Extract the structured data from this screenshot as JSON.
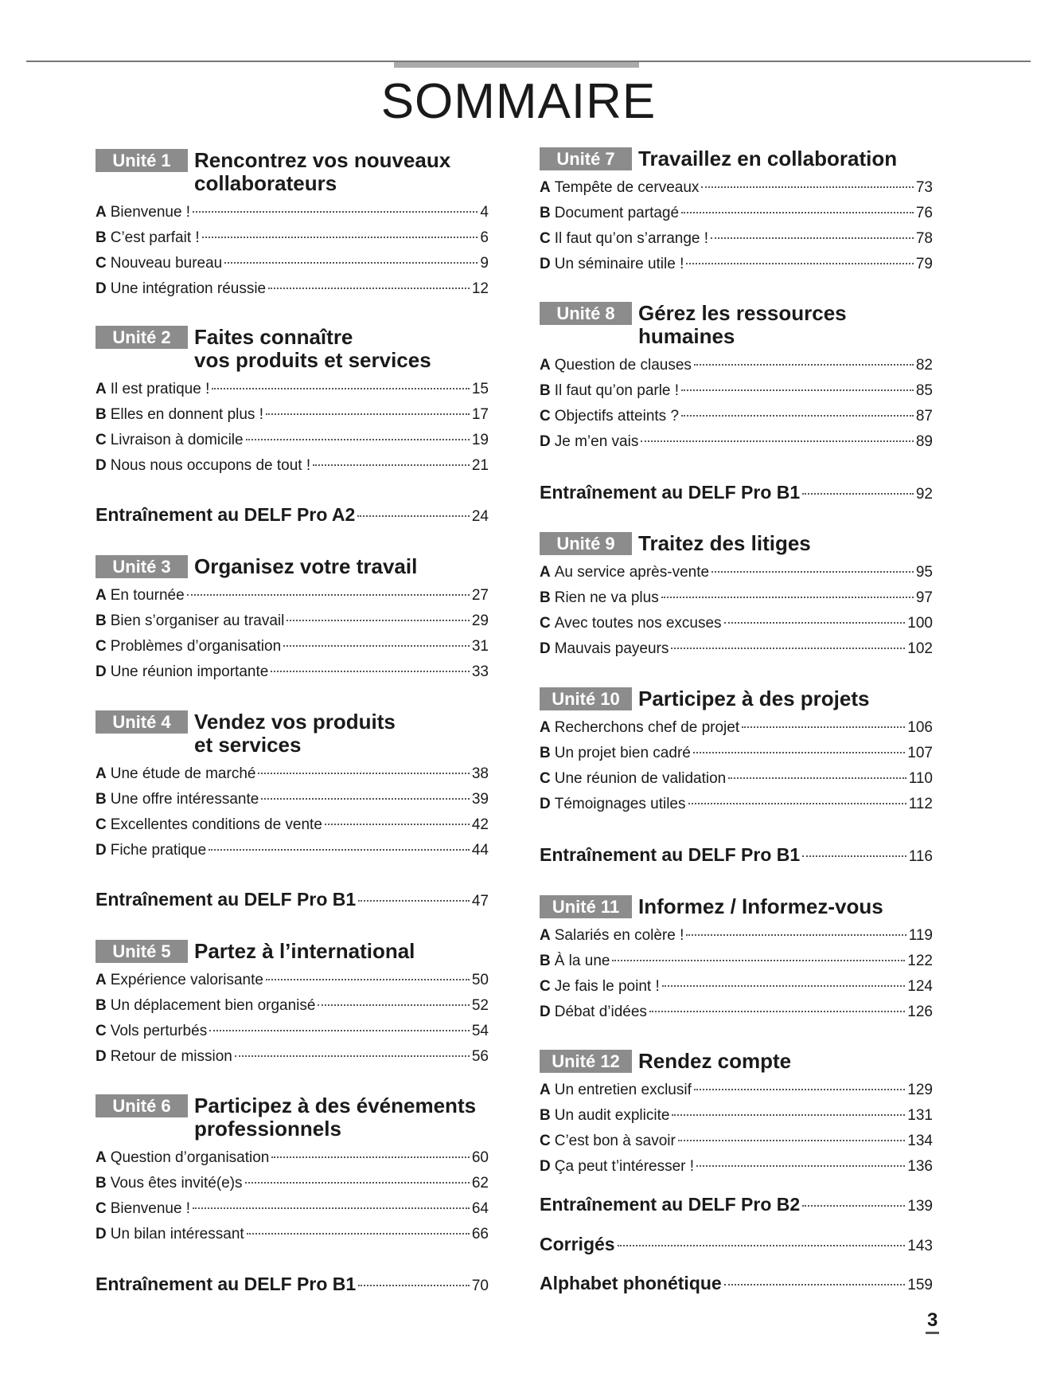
{
  "header": {
    "title": "SOMMAIRE"
  },
  "columns": [
    [
      {
        "badge": "Unité 1",
        "title_lines": [
          "Rencontrez vos nouveaux",
          "collaborateurs"
        ],
        "entries": [
          {
            "letter": "A",
            "text": "Bienvenue !",
            "page": 4
          },
          {
            "letter": "B",
            "text": "C’est parfait !",
            "page": 6
          },
          {
            "letter": "C",
            "text": "Nouveau bureau",
            "page": 9
          },
          {
            "letter": "D",
            "text": "Une intégration réussie",
            "page": 12
          }
        ]
      },
      {
        "badge": "Unité 2",
        "title_lines": [
          "Faites connaître",
          "vos produits et services"
        ],
        "entries": [
          {
            "letter": "A",
            "text": "Il est pratique !",
            "page": 15
          },
          {
            "letter": "B",
            "text": "Elles en donnent plus !",
            "page": 17
          },
          {
            "letter": "C",
            "text": "Livraison à domicile",
            "page": 19
          },
          {
            "letter": "D",
            "text": "Nous nous occupons de tout !",
            "page": 21
          }
        ]
      },
      {
        "title": "Entraînement au DELF Pro A2",
        "page": 24
      },
      {
        "badge": "Unité 3",
        "title_lines": [
          "Organisez votre travail"
        ],
        "entries": [
          {
            "letter": "A",
            "text": "En tournée",
            "page": 27
          },
          {
            "letter": "B",
            "text": "Bien s’organiser au travail",
            "page": 29
          },
          {
            "letter": "C",
            "text": "Problèmes d’organisation",
            "page": 31
          },
          {
            "letter": "D",
            "text": "Une réunion importante",
            "page": 33
          }
        ]
      },
      {
        "badge": "Unité 4",
        "title_lines": [
          "Vendez vos produits",
          "et services"
        ],
        "entries": [
          {
            "letter": "A",
            "text": "Une étude de marché",
            "page": 38
          },
          {
            "letter": "B",
            "text": "Une offre intéressante",
            "page": 39
          },
          {
            "letter": "C",
            "text": "Excellentes conditions de vente",
            "page": 42
          },
          {
            "letter": "D",
            "text": "Fiche pratique",
            "page": 44
          }
        ]
      },
      {
        "title": "Entraînement au DELF Pro B1",
        "page": 47
      },
      {
        "badge": "Unité 5",
        "title_lines": [
          "Partez à l’international"
        ],
        "entries": [
          {
            "letter": "A",
            "text": "Expérience valorisante",
            "page": 50
          },
          {
            "letter": "B",
            "text": "Un déplacement bien organisé",
            "page": 52
          },
          {
            "letter": "C",
            "text": "Vols perturbés",
            "page": 54
          },
          {
            "letter": "D",
            "text": "Retour de mission",
            "page": 56
          }
        ]
      },
      {
        "badge": "Unité 6",
        "title_lines": [
          "Participez à des événements",
          "professionnels"
        ],
        "entries": [
          {
            "letter": "A",
            "text": "Question d’organisation",
            "page": 60
          },
          {
            "letter": "B",
            "text": "Vous êtes invité(e)s",
            "page": 62
          },
          {
            "letter": "C",
            "text": "Bienvenue !",
            "page": 64
          },
          {
            "letter": "D",
            "text": "Un bilan intéressant",
            "page": 66
          }
        ]
      },
      {
        "title": "Entraînement au DELF Pro B1",
        "page": 70
      }
    ],
    [
      {
        "badge": "Unité 7",
        "title_lines": [
          "Travaillez en collaboration"
        ],
        "entries": [
          {
            "letter": "A",
            "text": "Tempête de cerveaux",
            "page": 73
          },
          {
            "letter": "B",
            "text": "Document partagé",
            "page": 76
          },
          {
            "letter": "C",
            "text": "Il faut qu’on s’arrange !",
            "page": 78
          },
          {
            "letter": "D",
            "text": "Un séminaire utile !",
            "page": 79
          }
        ]
      },
      {
        "badge": "Unité 8",
        "title_lines": [
          "Gérez les ressources",
          "humaines"
        ],
        "entries": [
          {
            "letter": "A",
            "text": "Question de clauses",
            "page": 82
          },
          {
            "letter": "B",
            "text": "Il faut qu’on parle !",
            "page": 85
          },
          {
            "letter": "C",
            "text": "Objectifs atteints ?",
            "page": 87
          },
          {
            "letter": "D",
            "text": "Je m’en vais",
            "page": 89
          }
        ]
      },
      {
        "title": "Entraînement au DELF Pro B1",
        "page": 92
      },
      {
        "badge": "Unité 9",
        "title_lines": [
          "Traitez des litiges"
        ],
        "entries": [
          {
            "letter": "A",
            "text": "Au service après-vente",
            "page": 95
          },
          {
            "letter": "B",
            "text": "Rien ne va plus",
            "page": 97
          },
          {
            "letter": "C",
            "text": "Avec toutes nos excuses",
            "page": 100
          },
          {
            "letter": "D",
            "text": "Mauvais payeurs",
            "page": 102
          }
        ]
      },
      {
        "badge": "Unité 10",
        "title_lines": [
          "Participez à des projets"
        ],
        "entries": [
          {
            "letter": "A",
            "text": "Recherchons chef de projet",
            "page": 106
          },
          {
            "letter": "B",
            "text": "Un projet bien cadré",
            "page": 107
          },
          {
            "letter": "C",
            "text": "Une réunion de validation",
            "page": 110
          },
          {
            "letter": "D",
            "text": "Témoignages utiles",
            "page": 112
          }
        ]
      },
      {
        "title": "Entraînement au DELF Pro B1",
        "page": 116
      },
      {
        "badge": "Unité 11",
        "title_lines": [
          "Informez / Informez-vous"
        ],
        "entries": [
          {
            "letter": "A",
            "text": "Salariés en colère !",
            "page": 119
          },
          {
            "letter": "B",
            "text": "À la une",
            "page": 122
          },
          {
            "letter": "C",
            "text": "Je fais le point !",
            "page": 124
          },
          {
            "letter": "D",
            "text": "Débat d’idées",
            "page": 126
          }
        ]
      },
      {
        "badge": "Unité 12",
        "title_lines": [
          "Rendez compte"
        ],
        "entries": [
          {
            "letter": "A",
            "text": "Un entretien exclusif",
            "page": 129
          },
          {
            "letter": "B",
            "text": "Un audit explicite",
            "page": 131
          },
          {
            "letter": "C",
            "text": "C’est bon à savoir",
            "page": 134
          },
          {
            "letter": "D",
            "text": "Ça peut t’intéresser !",
            "page": 136
          }
        ]
      },
      {
        "title": "Entraînement au DELF Pro B2",
        "page": 139
      },
      {
        "title": "Corrigés",
        "page": 143
      },
      {
        "title": "Alphabet phonétique",
        "page": 159
      }
    ]
  ],
  "footer": {
    "page_number": 3
  }
}
